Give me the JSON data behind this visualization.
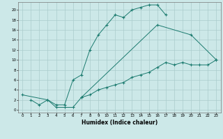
{
  "xlabel": "Humidex (Indice chaleur)",
  "bg_color": "#cce8e8",
  "line_color": "#1a7a6e",
  "grid_color": "#aacccc",
  "xlim": [
    -0.5,
    23.5
  ],
  "ylim": [
    -0.5,
    21.5
  ],
  "xticks": [
    0,
    1,
    2,
    3,
    4,
    5,
    6,
    7,
    8,
    9,
    10,
    11,
    12,
    13,
    14,
    15,
    16,
    17,
    18,
    19,
    20,
    21,
    22,
    23
  ],
  "yticks": [
    0,
    2,
    4,
    6,
    8,
    10,
    12,
    14,
    16,
    18,
    20
  ],
  "curve1": {
    "x": [
      1,
      2,
      3,
      4,
      5,
      6,
      7,
      8,
      9,
      10,
      11,
      12,
      13,
      14,
      15,
      16,
      17
    ],
    "y": [
      2,
      1,
      2,
      1,
      1,
      6,
      7,
      12,
      15,
      17,
      19,
      18.5,
      20,
      20.5,
      21,
      21,
      19
    ]
  },
  "curve2": {
    "x": [
      7,
      16,
      20,
      23
    ],
    "y": [
      2.5,
      17,
      15,
      10
    ]
  },
  "curve3": {
    "x": [
      0,
      3,
      4,
      5,
      6,
      7,
      8,
      9,
      10,
      11,
      12,
      13,
      14,
      15,
      16,
      17,
      18,
      19,
      20,
      21,
      22,
      23
    ],
    "y": [
      3,
      2,
      0.5,
      0.5,
      0.5,
      2.5,
      3,
      4,
      4.5,
      5,
      5.5,
      6.5,
      7,
      7.5,
      8.5,
      9.5,
      9,
      9.5,
      9,
      9,
      9,
      10
    ]
  }
}
